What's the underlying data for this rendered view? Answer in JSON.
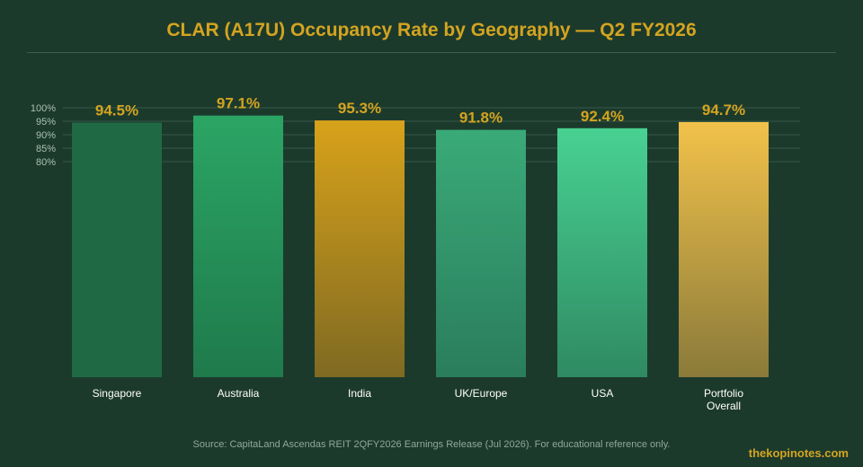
{
  "header": {
    "title": "CLAR (A17U) Occupancy Rate by Geography — Q2 FY2026"
  },
  "footer": {
    "source": "Source: CapitaLand Ascendas REIT 2QFY2026 Earnings Release (Jul 2026). For educational reference only.",
    "brand": "thekopinotes.com"
  },
  "chart_data": {
    "type": "bar",
    "title": "CLAR (A17U) Occupancy Rate by Geography — Q2 FY2026",
    "categories": [
      "Singapore",
      "Australia",
      "India",
      "UK/Europe",
      "USA",
      "Portfolio Overall"
    ],
    "values": [
      94.5,
      97.1,
      95.3,
      91.8,
      92.4,
      94.7
    ],
    "data_labels": [
      "94.5%",
      "97.1%",
      "95.3%",
      "91.8%",
      "92.4%",
      "94.7%"
    ],
    "yticks": [
      80,
      85,
      90,
      95,
      100
    ],
    "ytick_labels": [
      "80%",
      "85%",
      "90%",
      "95%",
      "100%"
    ],
    "grid": true,
    "legend": "none",
    "bar_colors": [
      [
        "#1f6a45",
        "#1f6a45"
      ],
      [
        "#2ba564",
        "#1f7a4c"
      ],
      [
        "#d8a21a",
        "#7f6a22"
      ],
      [
        "#3aaa78",
        "#2a7d5c"
      ],
      [
        "#48d192",
        "#2f8a62"
      ],
      [
        "#f2c24a",
        "#8a7a3a"
      ]
    ],
    "label_color": "#d4a420"
  }
}
